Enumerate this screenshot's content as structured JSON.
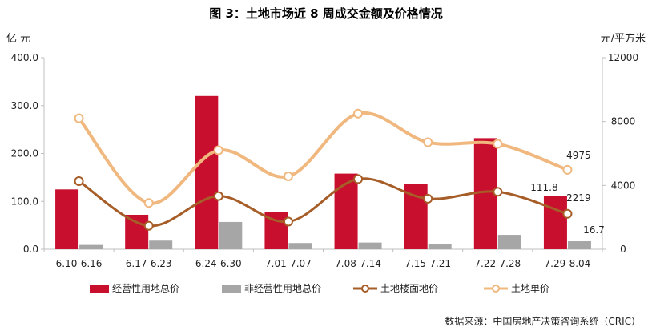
{
  "title": "图 3：土地市场近 8 周成交金额及价格情况",
  "source": "数据来源：中国房地产决策咨询系统（CRIC）",
  "colors": {
    "operating": "#c8102e",
    "non_operating": "#a6a6a6",
    "floor_price": "#a65d27",
    "unit_price": "#f0b87e"
  },
  "chart_data": {
    "type": "bar",
    "categories": [
      "6.10-6.16",
      "6.17-6.23",
      "6.24-6.30",
      "7.01-7.07",
      "7.08-7.14",
      "7.15-7.21",
      "7.22-7.28",
      "7.29-8.04"
    ],
    "y_left": {
      "label": "亿 元",
      "ylim": [
        0,
        400
      ],
      "ticks": [
        "0.0",
        "100.0",
        "200.0",
        "300.0",
        "400.0"
      ]
    },
    "y_right": {
      "label": "元/平方米",
      "ylim": [
        0,
        12000
      ],
      "ticks": [
        "0",
        "4000",
        "8000",
        "12000"
      ]
    },
    "grid": false,
    "legend_position": "bottom",
    "series": [
      {
        "name": "经营性用地总价",
        "type": "bar",
        "axis": "left",
        "values": [
          125,
          72,
          320,
          78,
          158,
          136,
          232,
          111.8
        ]
      },
      {
        "name": "非经营性用地总价",
        "type": "bar",
        "axis": "left",
        "values": [
          9,
          18,
          57,
          13,
          14,
          10,
          30,
          16.7
        ]
      },
      {
        "name": "土地楼面地价",
        "type": "line",
        "axis": "right",
        "values": [
          4270,
          1470,
          3330,
          1730,
          4400,
          3170,
          3600,
          2219
        ]
      },
      {
        "name": "土地单价",
        "type": "line",
        "axis": "right",
        "values": [
          8200,
          2900,
          6200,
          4570,
          8500,
          6700,
          6600,
          4975
        ]
      }
    ],
    "data_labels": [
      {
        "series": "经营性用地总价",
        "category": "7.29-8.04",
        "text": "111.8"
      },
      {
        "series": "非经营性用地总价",
        "category": "7.29-8.04",
        "text": "16.7"
      },
      {
        "series": "土地楼面地价",
        "category": "7.29-8.04",
        "text": "2219"
      },
      {
        "series": "土地单价",
        "category": "7.29-8.04",
        "text": "4975"
      }
    ]
  }
}
